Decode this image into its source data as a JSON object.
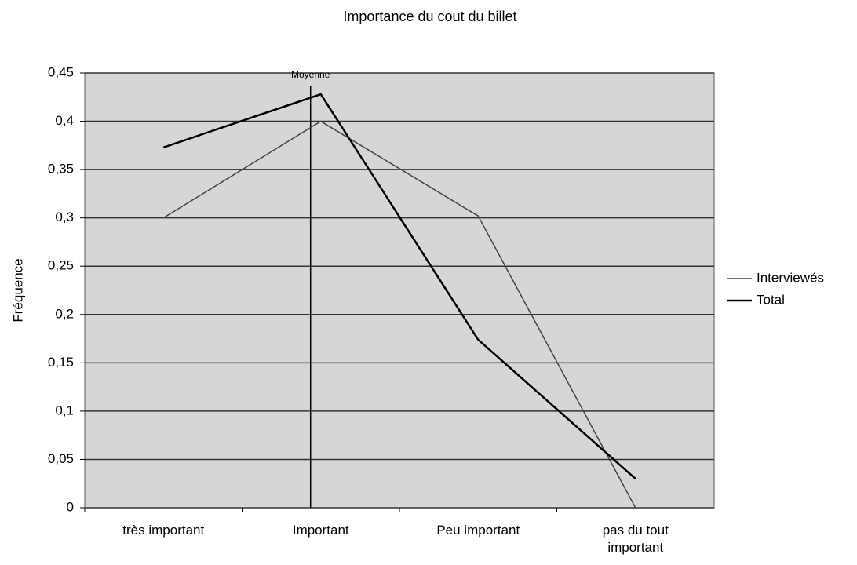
{
  "chart_data": {
    "type": "line",
    "title": "Importance du cout du billet",
    "y_label": "Fréquence",
    "annotation": "Moyenne",
    "categories": [
      "très important",
      "Important",
      "Peu important",
      "pas du tout important"
    ],
    "series": [
      {
        "name": "Interviewés",
        "color": "#444444",
        "values": [
          0.3,
          0.4,
          0.302,
          0
        ]
      },
      {
        "name": "Total",
        "color": "#000000",
        "values": [
          0.373,
          0.428,
          0.174,
          0.03
        ]
      }
    ],
    "ylim": [
      0,
      0.45
    ],
    "yticks": [
      0,
      {
        "value": 0.05,
        "label": "0,05"
      },
      {
        "value": 0.1,
        "label": "0,1"
      },
      {
        "value": 0.15,
        "label": "0,15"
      },
      {
        "value": 0.2,
        "label": "0,2"
      },
      {
        "value": 0.25,
        "label": "0,25"
      },
      {
        "value": 0.3,
        "label": "0,3"
      },
      {
        "value": 0.35,
        "label": "0,35"
      },
      {
        "value": 0.4,
        "label": "0,4"
      },
      {
        "value": 0.45,
        "label": "0,45"
      }
    ],
    "grid": true,
    "legend": "right"
  }
}
